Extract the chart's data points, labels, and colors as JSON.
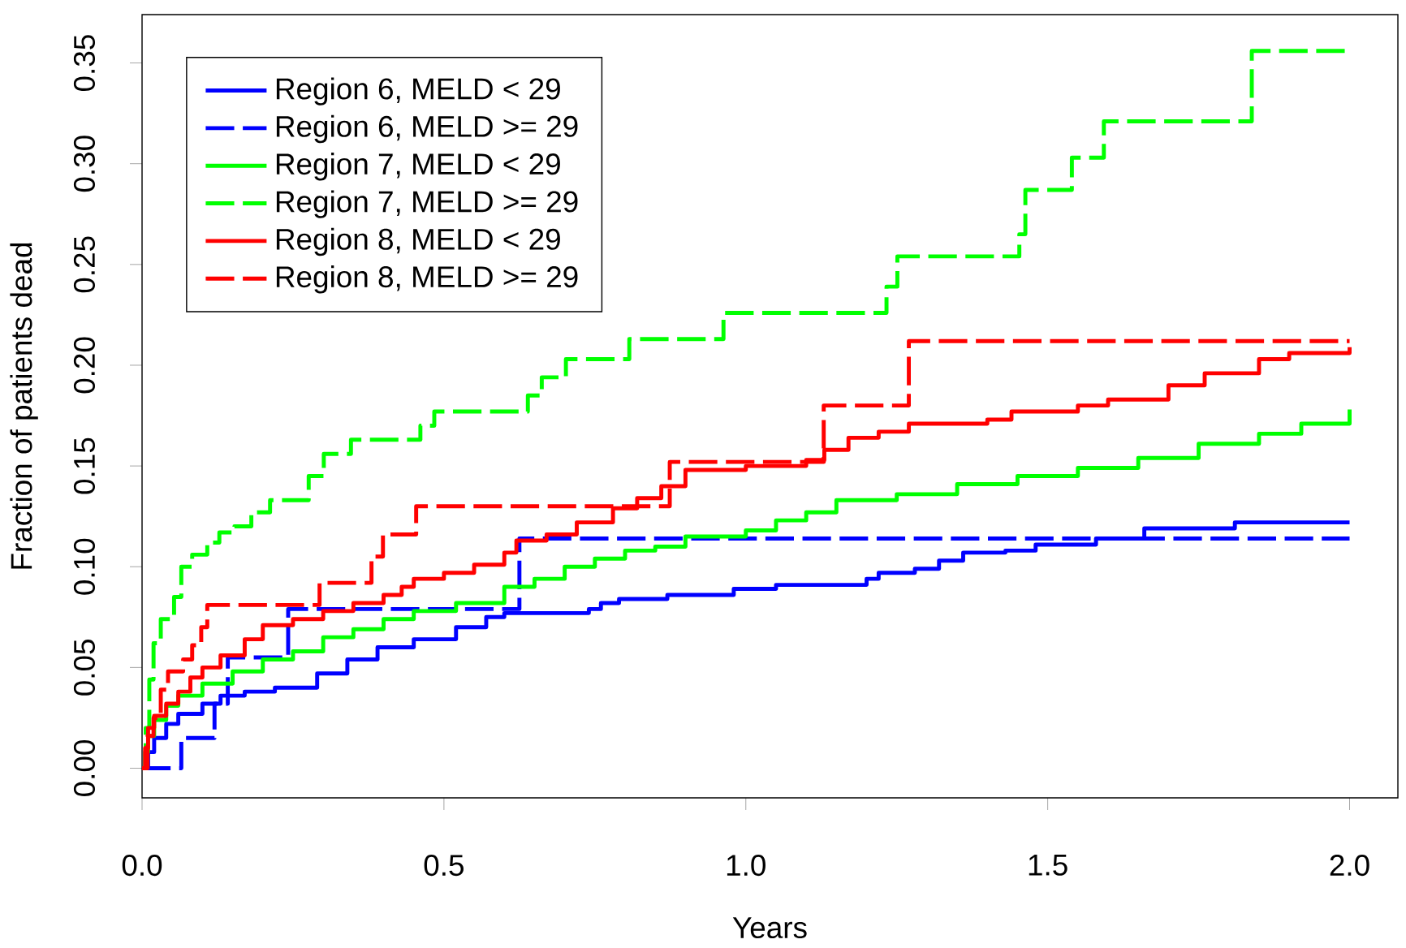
{
  "chart_data": {
    "type": "step",
    "xlabel": "Years",
    "ylabel": "Fraction of patients dead",
    "xlim": [
      0,
      2.08
    ],
    "ylim": [
      -0.0147,
      0.374
    ],
    "xticks": [
      {
        "value": 0,
        "label": "0.0"
      },
      {
        "value": 0.5,
        "label": "0.5"
      },
      {
        "value": 1,
        "label": "1.0"
      },
      {
        "value": 1.5,
        "label": "1.5"
      },
      {
        "value": 2,
        "label": "2.0"
      }
    ],
    "yticks": [
      {
        "value": 0,
        "label": "0.00"
      },
      {
        "value": 0.05,
        "label": "0.05"
      },
      {
        "value": 0.1,
        "label": "0.10"
      },
      {
        "value": 0.15,
        "label": "0.15"
      },
      {
        "value": 0.2,
        "label": "0.20"
      },
      {
        "value": 0.25,
        "label": "0.25"
      },
      {
        "value": 0.3,
        "label": "0.30"
      },
      {
        "value": 0.35,
        "label": "0.35"
      }
    ],
    "grid": false,
    "legend": "top left",
    "series": [
      {
        "name": "Region 6, MELD < 29",
        "color": "#0000ff",
        "line_style": "solid",
        "x": [
          0,
          0.01,
          0.02,
          0.04,
          0.06,
          0.1,
          0.13,
          0.17,
          0.22,
          0.29,
          0.34,
          0.39,
          0.45,
          0.52,
          0.57,
          0.6,
          0.74,
          0.76,
          0.79,
          0.87,
          0.98,
          1.05,
          1.2,
          1.22,
          1.28,
          1.32,
          1.36,
          1.43,
          1.48,
          1.58,
          1.66,
          1.81,
          2.0
        ],
        "values": [
          0,
          0.008,
          0.015,
          0.022,
          0.027,
          0.032,
          0.036,
          0.038,
          0.04,
          0.047,
          0.054,
          0.06,
          0.064,
          0.07,
          0.075,
          0.077,
          0.079,
          0.082,
          0.084,
          0.086,
          0.089,
          0.091,
          0.094,
          0.097,
          0.099,
          0.103,
          0.107,
          0.108,
          0.111,
          0.114,
          0.119,
          0.122,
          0.122
        ]
      },
      {
        "name": "Region 6, MELD >= 29",
        "color": "#0000ff",
        "line_style": "dashed",
        "x": [
          0,
          0.065,
          0.12,
          0.142,
          0.242,
          0.625,
          2.0
        ],
        "values": [
          0,
          0.015,
          0.032,
          0.055,
          0.079,
          0.114,
          0.114
        ]
      },
      {
        "name": "Region 7, MELD < 29",
        "color": "#00ff00",
        "line_style": "solid",
        "x": [
          0,
          0.005,
          0.01,
          0.02,
          0.04,
          0.06,
          0.1,
          0.15,
          0.2,
          0.25,
          0.3,
          0.35,
          0.4,
          0.45,
          0.52,
          0.6,
          0.65,
          0.7,
          0.75,
          0.8,
          0.85,
          0.9,
          1.0,
          1.05,
          1.1,
          1.15,
          1.25,
          1.35,
          1.45,
          1.55,
          1.65,
          1.75,
          1.85,
          1.92,
          2.0
        ],
        "values": [
          0,
          0.008,
          0.016,
          0.024,
          0.031,
          0.036,
          0.042,
          0.048,
          0.054,
          0.058,
          0.065,
          0.069,
          0.074,
          0.078,
          0.082,
          0.09,
          0.094,
          0.1,
          0.104,
          0.108,
          0.11,
          0.115,
          0.118,
          0.123,
          0.127,
          0.133,
          0.136,
          0.141,
          0.145,
          0.149,
          0.154,
          0.161,
          0.166,
          0.171,
          0.178
        ]
      },
      {
        "name": "Region 7, MELD >= 29",
        "color": "#00ff00",
        "line_style": "dashed",
        "x": [
          0,
          0.006,
          0.012,
          0.019,
          0.031,
          0.053,
          0.065,
          0.083,
          0.108,
          0.128,
          0.153,
          0.181,
          0.212,
          0.276,
          0.301,
          0.346,
          0.461,
          0.484,
          0.639,
          0.662,
          0.702,
          0.807,
          0.963,
          1.233,
          1.251,
          1.453,
          1.463,
          1.54,
          1.593,
          1.838,
          2.0
        ],
        "values": [
          0,
          0.02,
          0.044,
          0.062,
          0.074,
          0.085,
          0.1,
          0.106,
          0.112,
          0.117,
          0.12,
          0.127,
          0.133,
          0.145,
          0.156,
          0.163,
          0.17,
          0.177,
          0.185,
          0.194,
          0.203,
          0.213,
          0.226,
          0.239,
          0.254,
          0.265,
          0.287,
          0.303,
          0.321,
          0.356,
          0.356
        ]
      },
      {
        "name": "Region 8, MELD < 29",
        "color": "#ff0000",
        "line_style": "solid",
        "x": [
          0,
          0.005,
          0.01,
          0.02,
          0.04,
          0.06,
          0.08,
          0.1,
          0.13,
          0.17,
          0.2,
          0.25,
          0.3,
          0.35,
          0.4,
          0.43,
          0.45,
          0.5,
          0.55,
          0.6,
          0.62,
          0.67,
          0.72,
          0.78,
          0.82,
          0.86,
          0.9,
          1.0,
          1.1,
          1.13,
          1.17,
          1.22,
          1.27,
          1.4,
          1.44,
          1.55,
          1.6,
          1.7,
          1.76,
          1.85,
          1.9,
          2.0
        ],
        "values": [
          0,
          0.01,
          0.02,
          0.026,
          0.032,
          0.038,
          0.045,
          0.05,
          0.056,
          0.064,
          0.071,
          0.074,
          0.078,
          0.082,
          0.086,
          0.09,
          0.094,
          0.097,
          0.101,
          0.107,
          0.113,
          0.116,
          0.122,
          0.129,
          0.134,
          0.14,
          0.148,
          0.15,
          0.153,
          0.158,
          0.164,
          0.167,
          0.171,
          0.173,
          0.177,
          0.18,
          0.183,
          0.19,
          0.196,
          0.203,
          0.206,
          0.209
        ]
      },
      {
        "name": "Region 8, MELD >= 29",
        "color": "#ff0000",
        "line_style": "dashed",
        "x": [
          0,
          0.009,
          0.019,
          0.031,
          0.043,
          0.068,
          0.083,
          0.098,
          0.108,
          0.294,
          0.38,
          0.399,
          0.454,
          0.874,
          1.129,
          1.27,
          2.0
        ],
        "values": [
          0,
          0.016,
          0.025,
          0.039,
          0.048,
          0.054,
          0.061,
          0.07,
          0.081,
          0.092,
          0.105,
          0.116,
          0.13,
          0.152,
          0.18,
          0.212,
          0.212
        ]
      }
    ]
  }
}
